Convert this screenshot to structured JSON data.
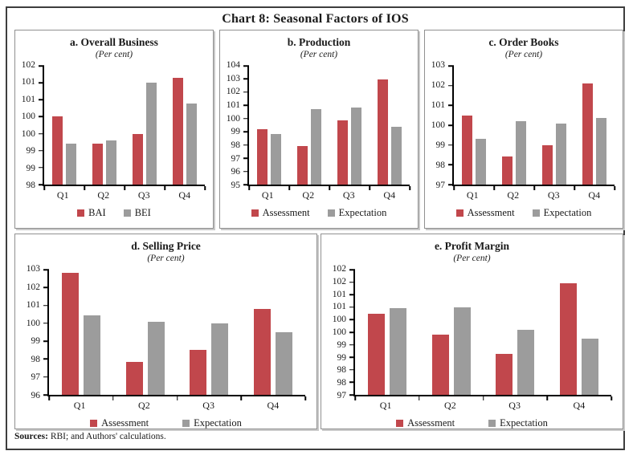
{
  "page_title": "Chart 8: Seasonal Factors of IOS",
  "footer": {
    "label": "Sources:",
    "text": " RBI; and Authors' calculations."
  },
  "colors": {
    "assessment_red": "#C1474C",
    "expectation_gray": "#9C9C9C",
    "axis": "#000000"
  },
  "chart_data": [
    {
      "type": "bar",
      "title": "a. Overall Business",
      "subtitle": "(Per cent)",
      "categories": [
        "Q1",
        "Q2",
        "Q3",
        "Q4"
      ],
      "series": [
        {
          "name": "BAI",
          "color": "#C1474C",
          "values": [
            100.0,
            99.2,
            99.5,
            101.15
          ]
        },
        {
          "name": "BEI",
          "color": "#9C9C9C",
          "values": [
            99.2,
            99.3,
            101.0,
            100.4
          ]
        }
      ],
      "ylim": [
        98,
        101.5
      ],
      "yticks": [
        98,
        98.5,
        99,
        99.5,
        100,
        100.5,
        101,
        101.5
      ],
      "ytick_labels": [
        "98",
        "99",
        "99",
        "100",
        "100",
        "101",
        "101",
        "102"
      ],
      "legend_position": "bottom",
      "grid": false
    },
    {
      "type": "bar",
      "title": "b. Production",
      "subtitle": "(Per cent)",
      "categories": [
        "Q1",
        "Q2",
        "Q3",
        "Q4"
      ],
      "series": [
        {
          "name": "Assessment",
          "color": "#C1474C",
          "values": [
            99.2,
            97.9,
            99.85,
            102.95
          ]
        },
        {
          "name": "Expectation",
          "color": "#9C9C9C",
          "values": [
            98.85,
            100.7,
            100.85,
            99.4
          ]
        }
      ],
      "ylim": [
        95,
        104
      ],
      "yticks": [
        95,
        96,
        97,
        98,
        99,
        100,
        101,
        102,
        103,
        104
      ],
      "ytick_labels": [
        "95",
        "96",
        "97",
        "98",
        "99",
        "100",
        "101",
        "102",
        "103",
        "104"
      ],
      "legend_position": "bottom",
      "grid": false
    },
    {
      "type": "bar",
      "title": "c. Order Books",
      "subtitle": "(Per cent)",
      "categories": [
        "Q1",
        "Q2",
        "Q3",
        "Q4"
      ],
      "series": [
        {
          "name": "Assessment",
          "color": "#C1474C",
          "values": [
            100.5,
            98.4,
            99.0,
            102.1
          ]
        },
        {
          "name": "Expectation",
          "color": "#9C9C9C",
          "values": [
            99.3,
            100.2,
            100.1,
            100.35
          ]
        }
      ],
      "ylim": [
        97,
        103
      ],
      "yticks": [
        97,
        98,
        99,
        100,
        101,
        102,
        103
      ],
      "ytick_labels": [
        "97",
        "98",
        "99",
        "100",
        "101",
        "102",
        "103"
      ],
      "legend_position": "bottom",
      "grid": false
    },
    {
      "type": "bar",
      "title": "d. Selling Price",
      "subtitle": "(Per cent)",
      "categories": [
        "Q1",
        "Q2",
        "Q3",
        "Q4"
      ],
      "series": [
        {
          "name": "Assessment",
          "color": "#C1474C",
          "values": [
            102.8,
            97.85,
            98.5,
            100.8
          ]
        },
        {
          "name": "Expectation",
          "color": "#9C9C9C",
          "values": [
            100.45,
            100.1,
            100.0,
            99.5
          ]
        }
      ],
      "ylim": [
        96,
        103
      ],
      "yticks": [
        96,
        97,
        98,
        99,
        100,
        101,
        102,
        103
      ],
      "ytick_labels": [
        "96",
        "97",
        "98",
        "99",
        "100",
        "101",
        "102",
        "103"
      ],
      "legend_position": "bottom",
      "grid": false
    },
    {
      "type": "bar",
      "title": "e. Profit Margin",
      "subtitle": "(Per cent)",
      "categories": [
        "Q1",
        "Q2",
        "Q3",
        "Q4"
      ],
      "series": [
        {
          "name": "Assessment",
          "color": "#C1474C",
          "values": [
            100.25,
            99.4,
            98.65,
            101.45
          ]
        },
        {
          "name": "Expectation",
          "color": "#9C9C9C",
          "values": [
            100.45,
            100.5,
            99.6,
            99.25
          ]
        }
      ],
      "ylim": [
        97,
        102
      ],
      "yticks": [
        97,
        97.5,
        98,
        98.5,
        99,
        99.5,
        100,
        100.5,
        101,
        101.5,
        102
      ],
      "ytick_labels": [
        "97",
        "98",
        "98",
        "99",
        "99",
        "100",
        "100",
        "101",
        "101",
        "102",
        "102"
      ],
      "legend_position": "bottom",
      "grid": false
    }
  ]
}
